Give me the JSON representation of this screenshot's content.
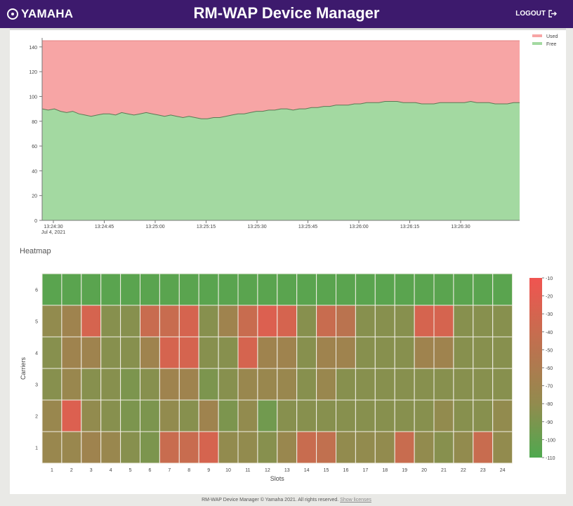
{
  "header": {
    "brand": "YAMAHA",
    "title": "RM-WAP Device Manager",
    "logout_label": "LOGOUT"
  },
  "area_chart": {
    "type": "area",
    "y_ticks": [
      "0",
      "20",
      "40",
      "60",
      "80",
      "100",
      "120",
      "140"
    ],
    "ylim": [
      0,
      145
    ],
    "x_ticks": [
      "13:24:30",
      "13:24:45",
      "13:25:00",
      "13:25:15",
      "13:25:30",
      "13:25:45",
      "13:26:00",
      "13:26:15",
      "13:26:30"
    ],
    "x_sub": "Jul 4, 2021",
    "legend": [
      {
        "name": "Used",
        "color": "#f7a5a5"
      },
      {
        "name": "Free",
        "color": "#a3d9a1"
      }
    ],
    "total": 145,
    "free_series": [
      90,
      89,
      90,
      88,
      87,
      88,
      86,
      85,
      84,
      85,
      86,
      86,
      85,
      87,
      86,
      85,
      86,
      87,
      86,
      85,
      84,
      85,
      84,
      83,
      84,
      83,
      82,
      82,
      83,
      83,
      84,
      85,
      86,
      86,
      87,
      88,
      88,
      89,
      89,
      90,
      90,
      89,
      90,
      90,
      91,
      91,
      92,
      92,
      93,
      93,
      93,
      94,
      94,
      95,
      95,
      95,
      96,
      96,
      96,
      95,
      95,
      95,
      94,
      94,
      94,
      95,
      95,
      95,
      95,
      95,
      96,
      95,
      95,
      95,
      94,
      94,
      94,
      95,
      95
    ]
  },
  "heatmap": {
    "section_title": "Heatmap",
    "xlabel": "Slots",
    "ylabel": "Carriers",
    "x_ticks": [
      "1",
      "2",
      "3",
      "4",
      "5",
      "6",
      "7",
      "8",
      "9",
      "10",
      "11",
      "12",
      "13",
      "14",
      "15",
      "16",
      "17",
      "18",
      "19",
      "20",
      "21",
      "22",
      "23",
      "24"
    ],
    "y_ticks": [
      "6",
      "5",
      "4",
      "3",
      "2",
      "1"
    ],
    "colorbar_ticks": [
      "-10",
      "-20",
      "-30",
      "-40",
      "-50",
      "-60",
      "-70",
      "-80",
      "-90",
      "-100",
      "-110"
    ],
    "vmin": -110,
    "vmax": -10,
    "rows": [
      [
        -105,
        -105,
        -105,
        -105,
        -105,
        -105,
        -105,
        -105,
        -105,
        -105,
        -105,
        -105,
        -105,
        -105,
        -105,
        -105,
        -105,
        -105,
        -105,
        -105,
        -105,
        -105,
        -105,
        -105
      ],
      [
        -80,
        -70,
        -30,
        -85,
        -85,
        -40,
        -40,
        -30,
        -85,
        -70,
        -40,
        -25,
        -30,
        -85,
        -40,
        -50,
        -85,
        -85,
        -85,
        -30,
        -30,
        -85,
        -85,
        -85
      ],
      [
        -85,
        -70,
        -70,
        -85,
        -85,
        -70,
        -30,
        -30,
        -85,
        -85,
        -30,
        -70,
        -70,
        -85,
        -70,
        -70,
        -85,
        -85,
        -85,
        -70,
        -70,
        -85,
        -85,
        -85
      ],
      [
        -85,
        -75,
        -85,
        -85,
        -90,
        -85,
        -70,
        -70,
        -90,
        -85,
        -75,
        -75,
        -75,
        -85,
        -75,
        -85,
        -85,
        -85,
        -85,
        -85,
        -85,
        -85,
        -85,
        -85
      ],
      [
        -75,
        -25,
        -80,
        -85,
        -90,
        -90,
        -80,
        -85,
        -70,
        -90,
        -80,
        -95,
        -85,
        -85,
        -85,
        -85,
        -85,
        -85,
        -85,
        -85,
        -80,
        -85,
        -85,
        -80
      ],
      [
        -75,
        -75,
        -70,
        -75,
        -85,
        -90,
        -40,
        -40,
        -30,
        -80,
        -80,
        -85,
        -75,
        -40,
        -45,
        -80,
        -80,
        -80,
        -40,
        -80,
        -85,
        -80,
        -40,
        -80
      ]
    ]
  },
  "footer": {
    "text": "RM-WAP Device Manager © Yamaha 2021. All rights reserved.",
    "link": "Show licenses"
  }
}
